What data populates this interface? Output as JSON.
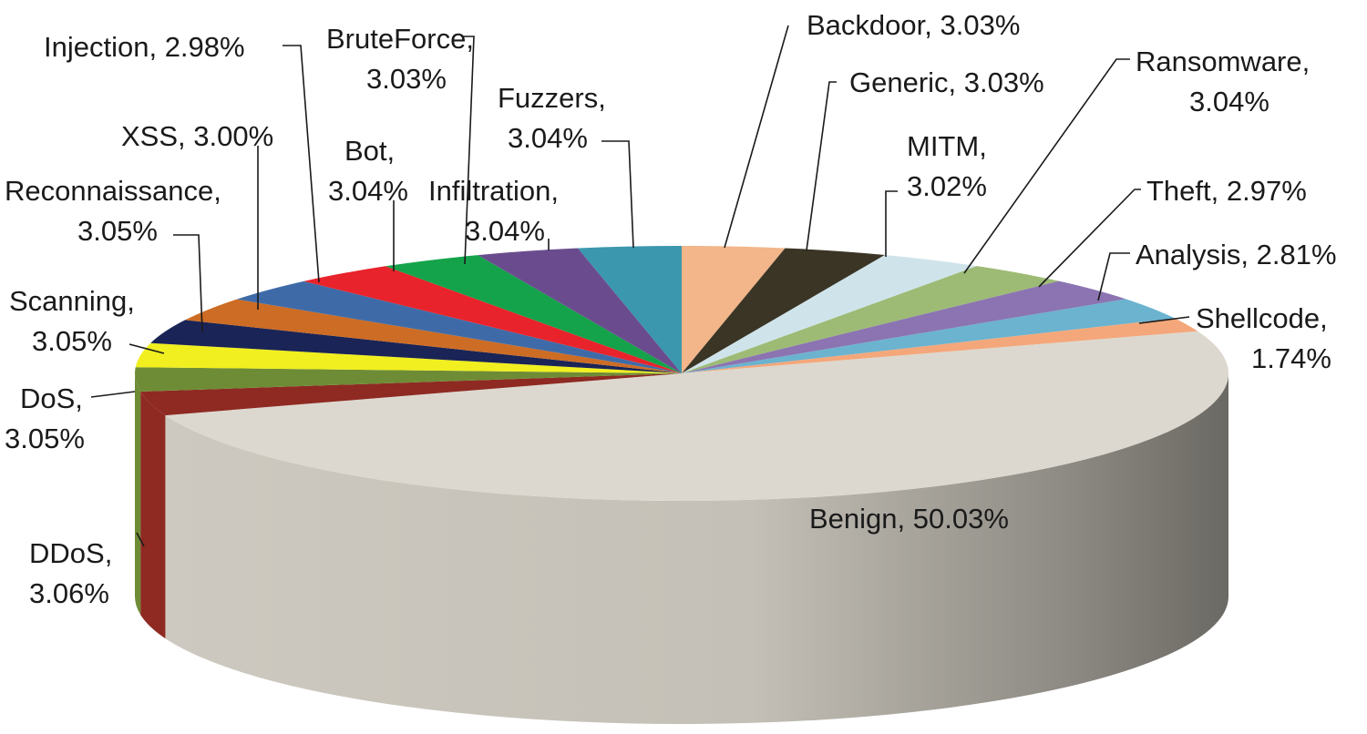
{
  "chart_data": {
    "type": "pie",
    "style": "3d",
    "title": "",
    "legend": "none",
    "data_labels": "category name and percentage with leader lines",
    "slices": [
      {
        "name": "Backdoor",
        "value": 3.03,
        "label": "Backdoor, 3.03%",
        "color": "#f2b68a"
      },
      {
        "name": "Generic",
        "value": 3.03,
        "label": "Generic, 3.03%",
        "color": "#3b3526"
      },
      {
        "name": "MITM",
        "value": 3.02,
        "label": "MITM, 3.02%",
        "color": "#cfe4ea"
      },
      {
        "name": "Ransomware",
        "value": 3.04,
        "label": "Ransomware, 3.04%",
        "color": "#9dbb75"
      },
      {
        "name": "Theft",
        "value": 2.97,
        "label": "Theft, 2.97%",
        "color": "#8b74b1"
      },
      {
        "name": "Analysis",
        "value": 2.81,
        "label": "Analysis, 2.81%",
        "color": "#6bb3cf"
      },
      {
        "name": "Shellcode",
        "value": 1.74,
        "label": "Shellcode, 1.74%",
        "color": "#f4a77a"
      },
      {
        "name": "Benign",
        "value": 50.03,
        "label": "Benign, 50.03%",
        "color": "#dcd8cf"
      },
      {
        "name": "DDoS",
        "value": 3.06,
        "label": "DDoS, 3.06%",
        "color": "#8e2a22"
      },
      {
        "name": "DoS",
        "value": 3.05,
        "label": "DoS, 3.05%",
        "color": "#6e8c35"
      },
      {
        "name": "Scanning",
        "value": 3.05,
        "label": "Scanning, 3.05%",
        "color": "#f1ef1f"
      },
      {
        "name": "Reconnaissance",
        "value": 3.05,
        "label": "Reconnaissance, 3.05%",
        "color": "#1a2456"
      },
      {
        "name": "XSS",
        "value": 3.0,
        "label": "XSS, 3.00%",
        "color": "#cd6c24"
      },
      {
        "name": "Injection",
        "value": 2.98,
        "label": "Injection, 2.98%",
        "color": "#3e6ba8"
      },
      {
        "name": "Bot",
        "value": 3.04,
        "label": "Bot, 3.04%",
        "color": "#e8232b"
      },
      {
        "name": "BruteForce",
        "value": 3.03,
        "label": "BruteForce, 3.03%",
        "color": "#14a34a"
      },
      {
        "name": "Infiltration",
        "value": 3.04,
        "label": "Infiltration, 3.04%",
        "color": "#6a4c8e"
      },
      {
        "name": "Fuzzers",
        "value": 3.04,
        "label": "Fuzzers, 3.04%",
        "color": "#3b97ae"
      }
    ]
  }
}
